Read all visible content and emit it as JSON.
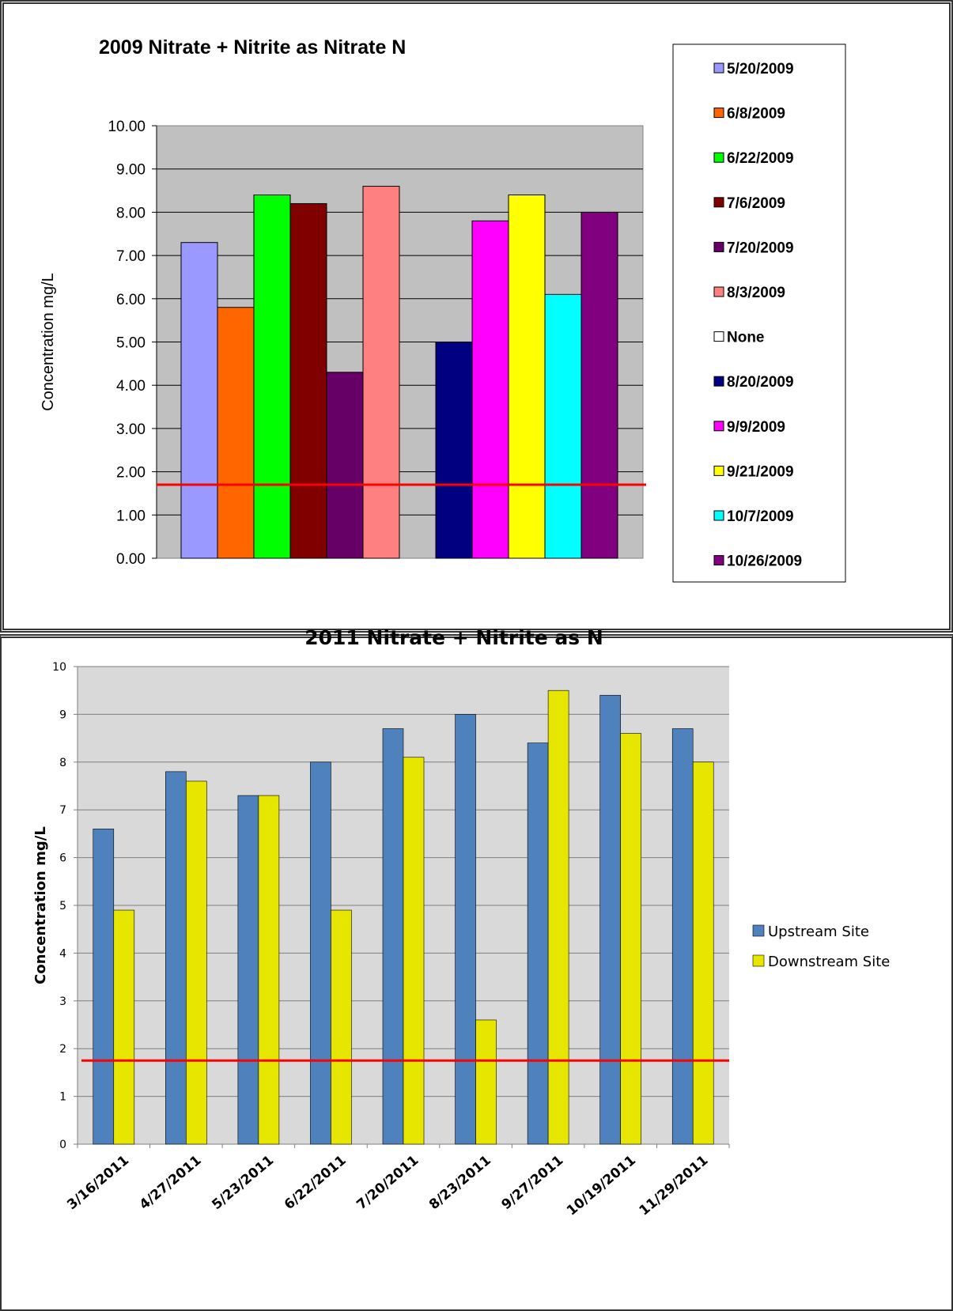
{
  "chart_data": [
    {
      "type": "bar",
      "title": "2009 Nitrate + Nitrite as Nitrate N",
      "ylabel": "Concentration mg/L",
      "xlabel": "",
      "ylim": [
        0,
        10
      ],
      "yticks": [
        "0.00",
        "1.00",
        "2.00",
        "3.00",
        "4.00",
        "5.00",
        "6.00",
        "7.00",
        "8.00",
        "9.00",
        "10.00"
      ],
      "grid": true,
      "legend_position": "right",
      "reference_line": 1.7,
      "reference_color": "#ff0000",
      "plot_background": "#c0c0c0",
      "series": [
        {
          "name": "5/20/2009",
          "value": 7.3,
          "color": "#9999ff"
        },
        {
          "name": "6/8/2009",
          "value": 5.8,
          "color": "#ff6600"
        },
        {
          "name": "6/22/2009",
          "value": 8.4,
          "color": "#00ff00"
        },
        {
          "name": "7/6/2009",
          "value": 8.2,
          "color": "#800000"
        },
        {
          "name": "7/20/2009",
          "value": 4.3,
          "color": "#660066"
        },
        {
          "name": "8/3/2009",
          "value": 8.6,
          "color": "#ff8080"
        },
        {
          "name": "None",
          "value": 0,
          "color": "#ffffff"
        },
        {
          "name": "8/20/2009",
          "value": 5.0,
          "color": "#000080"
        },
        {
          "name": "9/9/2009",
          "value": 7.8,
          "color": "#ff00ff"
        },
        {
          "name": "9/21/2009",
          "value": 8.4,
          "color": "#ffff00"
        },
        {
          "name": "10/7/2009",
          "value": 6.1,
          "color": "#00ffff"
        },
        {
          "name": "10/26/2009",
          "value": 8.0,
          "color": "#800080"
        }
      ]
    },
    {
      "type": "bar",
      "title": "2011 Nitrate + Nitrite as N",
      "ylabel": "Concentration mg/L",
      "xlabel": "",
      "ylim": [
        0,
        10
      ],
      "yticks": [
        "0",
        "1",
        "2",
        "3",
        "4",
        "5",
        "6",
        "7",
        "8",
        "9",
        "10"
      ],
      "grid": true,
      "legend_position": "right",
      "reference_line": 1.75,
      "reference_color": "#ff0000",
      "plot_background": "#d9d9d9",
      "categories": [
        "3/16/2011",
        "4/27/2011",
        "5/23/2011",
        "6/22/2011",
        "7/20/2011",
        "8/23/2011",
        "9/27/2011",
        "10/19/2011",
        "11/29/2011"
      ],
      "series": [
        {
          "name": "Upstream Site",
          "color": "#4f81bd",
          "values": [
            6.6,
            7.8,
            7.3,
            8.0,
            8.7,
            9.0,
            8.4,
            9.4,
            8.7
          ]
        },
        {
          "name": "Downstream Site",
          "color": "#e6e600",
          "values": [
            4.9,
            7.6,
            7.3,
            4.9,
            8.1,
            2.6,
            9.5,
            8.6,
            8.0
          ]
        }
      ]
    }
  ]
}
